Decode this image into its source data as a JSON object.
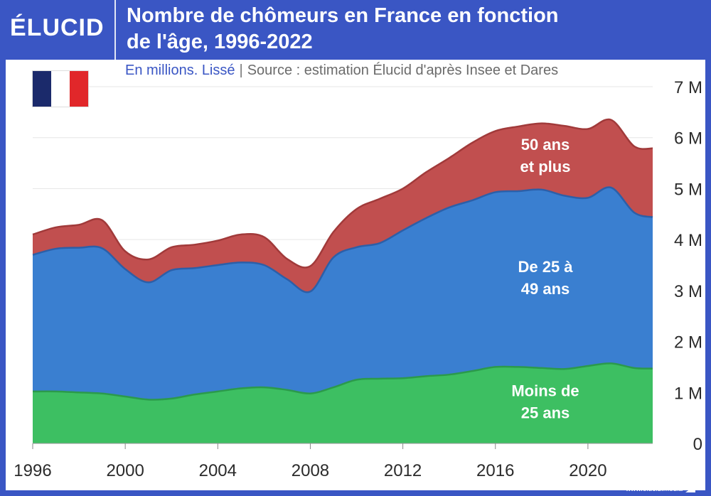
{
  "brand": {
    "logo": "ÉLUCID",
    "url": "www.elucid.media"
  },
  "header": {
    "title_line1": "Nombre de chômeurs en France en fonction",
    "title_line2": "de l'âge, 1996-2022",
    "subtitle_a": "En millions. Lissé",
    "subtitle_sep": "|",
    "subtitle_b": "Source : estimation Élucid d'après Insee et Dares"
  },
  "colors": {
    "background": "#3a56c4",
    "under25": "#3dbf62",
    "under25_line": "#2b9a4b",
    "mid": "#3a7fd0",
    "mid_line": "#2c5fa8",
    "over50": "#c14f4f",
    "over50_line": "#a13a3a",
    "grid": "#e6e6e6"
  },
  "chart_data": {
    "type": "area",
    "stacked": true,
    "title": "Nombre de chômeurs en France en fonction de l'âge, 1996-2022",
    "subtitle": "En millions. Lissé",
    "source": "Source : estimation Élucid d'après Insee et Dares",
    "x": [
      1996,
      1997,
      1998,
      1999,
      2000,
      2001,
      2002,
      2003,
      2004,
      2005,
      2006,
      2007,
      2008,
      2009,
      2010,
      2011,
      2012,
      2013,
      2014,
      2015,
      2016,
      2017,
      2018,
      2019,
      2020,
      2021,
      2022,
      2022.8
    ],
    "series": [
      {
        "name": "Moins de 25 ans",
        "label_lines": [
          "Moins de",
          "25 ans"
        ],
        "values": [
          1.02,
          1.02,
          1.0,
          0.98,
          0.92,
          0.86,
          0.88,
          0.96,
          1.02,
          1.08,
          1.1,
          1.05,
          0.98,
          1.1,
          1.25,
          1.27,
          1.28,
          1.32,
          1.35,
          1.42,
          1.5,
          1.5,
          1.48,
          1.46,
          1.52,
          1.57,
          1.48,
          1.47
        ]
      },
      {
        "name": "De 25 à 49 ans",
        "label_lines": [
          "De 25 à",
          "49 ans"
        ],
        "values": [
          2.68,
          2.8,
          2.84,
          2.85,
          2.5,
          2.3,
          2.52,
          2.48,
          2.48,
          2.47,
          2.4,
          2.17,
          2.0,
          2.55,
          2.6,
          2.66,
          2.9,
          3.1,
          3.28,
          3.35,
          3.43,
          3.45,
          3.5,
          3.4,
          3.3,
          3.45,
          3.05,
          2.97
        ]
      },
      {
        "name": "50 ans et plus",
        "label_lines": [
          "50 ans",
          "et plus"
        ],
        "values": [
          0.4,
          0.42,
          0.45,
          0.55,
          0.35,
          0.45,
          0.45,
          0.46,
          0.48,
          0.55,
          0.55,
          0.4,
          0.5,
          0.5,
          0.75,
          0.87,
          0.82,
          0.9,
          0.97,
          1.13,
          1.2,
          1.27,
          1.3,
          1.37,
          1.35,
          1.33,
          1.3,
          1.35
        ]
      }
    ],
    "ylim": [
      0,
      7
    ],
    "yticks": [
      0,
      1,
      2,
      3,
      4,
      5,
      6,
      7
    ],
    "ytick_labels": [
      "0",
      "1 M",
      "2 M",
      "3 M",
      "4 M",
      "5 M",
      "6 M",
      "7 M"
    ],
    "xticks": [
      1996,
      2000,
      2004,
      2008,
      2012,
      2016,
      2020
    ],
    "xtick_labels": [
      "1996",
      "2000",
      "2004",
      "2008",
      "2012",
      "2016",
      "2020"
    ],
    "grid": true,
    "yaxis_position": "right"
  }
}
